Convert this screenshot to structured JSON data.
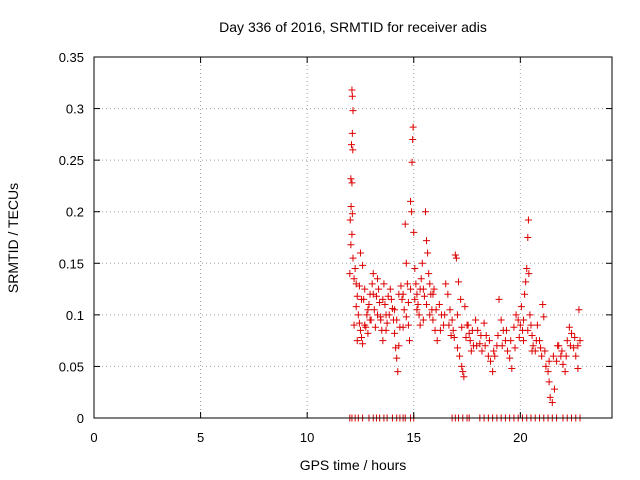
{
  "chart_data": {
    "type": "scatter",
    "title": "Day 336 of 2016, SRMTID for receiver adis",
    "xlabel": "GPS time / hours",
    "ylabel": "SRMTID / TECUs",
    "xlim": [
      0,
      24.3
    ],
    "ylim": [
      0,
      0.35
    ],
    "xticks": [
      0,
      5,
      10,
      15,
      20
    ],
    "xtick_labels": [
      "0",
      "5",
      "10",
      "15",
      "20"
    ],
    "yticks": [
      0,
      0.05,
      0.1,
      0.15,
      0.2,
      0.25,
      0.3,
      0.35
    ],
    "ytick_labels": [
      "0",
      "0.05",
      "0.1",
      "0.15",
      "0.2",
      "0.25",
      "0.3",
      "0.35"
    ],
    "grid": true,
    "marker": "+",
    "colors": {
      "series": "#dd0000",
      "grid": "#a0a0a0",
      "axes": "#000000"
    },
    "series": [
      {
        "name": "SRMTID",
        "points": [
          [
            12.0,
            0.0
          ],
          [
            12.1,
            0.0
          ],
          [
            12.25,
            0.0
          ],
          [
            12.4,
            0.0
          ],
          [
            12.6,
            0.0
          ],
          [
            12.9,
            0.0
          ],
          [
            13.1,
            0.0
          ],
          [
            13.25,
            0.0
          ],
          [
            13.4,
            0.0
          ],
          [
            13.6,
            0.0
          ],
          [
            13.75,
            0.0
          ],
          [
            14.0,
            0.0
          ],
          [
            14.2,
            0.0
          ],
          [
            14.35,
            0.0
          ],
          [
            14.5,
            0.0
          ],
          [
            14.6,
            0.0
          ],
          [
            14.85,
            0.0
          ],
          [
            15.0,
            0.0
          ],
          [
            16.8,
            0.0
          ],
          [
            16.95,
            0.0
          ],
          [
            17.1,
            0.0
          ],
          [
            17.3,
            0.0
          ],
          [
            17.5,
            0.0
          ],
          [
            17.6,
            0.0
          ],
          [
            18.1,
            0.0
          ],
          [
            18.3,
            0.0
          ],
          [
            18.5,
            0.0
          ],
          [
            18.7,
            0.0
          ],
          [
            18.9,
            0.0
          ],
          [
            19.1,
            0.0
          ],
          [
            19.3,
            0.0
          ],
          [
            19.5,
            0.0
          ],
          [
            19.7,
            0.0
          ],
          [
            19.9,
            0.0
          ],
          [
            20.1,
            0.0
          ],
          [
            20.3,
            0.0
          ],
          [
            20.5,
            0.0
          ],
          [
            20.7,
            0.0
          ],
          [
            20.9,
            0.0
          ],
          [
            21.1,
            0.0
          ],
          [
            21.3,
            0.0
          ],
          [
            21.5,
            0.0
          ],
          [
            21.7,
            0.0
          ],
          [
            22.0,
            0.0
          ],
          [
            22.2,
            0.0
          ],
          [
            22.4,
            0.0
          ],
          [
            22.6,
            0.0
          ],
          [
            22.8,
            0.0
          ],
          [
            12.1,
            0.318
          ],
          [
            12.12,
            0.312
          ],
          [
            12.15,
            0.298
          ],
          [
            12.12,
            0.276
          ],
          [
            12.08,
            0.265
          ],
          [
            12.14,
            0.26
          ],
          [
            12.05,
            0.232
          ],
          [
            12.1,
            0.228
          ],
          [
            12.06,
            0.205
          ],
          [
            12.12,
            0.198
          ],
          [
            12.02,
            0.192
          ],
          [
            12.1,
            0.178
          ],
          [
            12.05,
            0.168
          ],
          [
            12.15,
            0.155
          ],
          [
            12.0,
            0.14
          ],
          [
            12.2,
            0.135
          ],
          [
            12.25,
            0.145
          ],
          [
            12.3,
            0.13
          ],
          [
            12.35,
            0.118
          ],
          [
            12.3,
            0.108
          ],
          [
            12.4,
            0.1
          ],
          [
            12.45,
            0.092
          ],
          [
            12.5,
            0.085
          ],
          [
            12.55,
            0.078
          ],
          [
            12.6,
            0.072
          ],
          [
            12.65,
            0.115
          ],
          [
            12.7,
            0.125
          ],
          [
            12.6,
            0.148
          ],
          [
            12.5,
            0.16
          ],
          [
            12.7,
            0.09
          ],
          [
            12.8,
            0.1
          ],
          [
            12.85,
            0.082
          ],
          [
            12.9,
            0.11
          ],
          [
            12.95,
            0.12
          ],
          [
            13.0,
            0.095
          ],
          [
            13.05,
            0.13
          ],
          [
            13.1,
            0.14
          ],
          [
            13.15,
            0.105
          ],
          [
            13.2,
            0.088
          ],
          [
            13.25,
            0.118
          ],
          [
            13.3,
            0.135
          ],
          [
            13.35,
            0.125
          ],
          [
            13.4,
            0.112
          ],
          [
            13.45,
            0.098
          ],
          [
            13.5,
            0.085
          ],
          [
            13.55,
            0.075
          ],
          [
            13.6,
            0.13
          ],
          [
            13.65,
            0.11
          ],
          [
            13.7,
            0.1
          ],
          [
            13.75,
            0.092
          ],
          [
            13.8,
            0.118
          ],
          [
            13.9,
            0.125
          ],
          [
            14.0,
            0.106
          ],
          [
            14.05,
            0.095
          ],
          [
            14.1,
            0.082
          ],
          [
            14.15,
            0.068
          ],
          [
            14.2,
            0.058
          ],
          [
            14.25,
            0.045
          ],
          [
            14.3,
            0.07
          ],
          [
            14.35,
            0.088
          ],
          [
            14.4,
            0.128
          ],
          [
            14.45,
            0.115
          ],
          [
            14.5,
            0.12
          ],
          [
            14.55,
            0.105
          ],
          [
            14.6,
            0.188
          ],
          [
            14.65,
            0.15
          ],
          [
            14.7,
            0.13
          ],
          [
            14.75,
            0.09
          ],
          [
            14.8,
            0.075
          ],
          [
            14.85,
            0.21
          ],
          [
            14.9,
            0.2
          ],
          [
            14.92,
            0.248
          ],
          [
            14.95,
            0.27
          ],
          [
            14.97,
            0.282
          ],
          [
            15.0,
            0.18
          ],
          [
            15.05,
            0.145
          ],
          [
            15.1,
            0.13
          ],
          [
            15.15,
            0.12
          ],
          [
            15.2,
            0.11
          ],
          [
            15.25,
            0.1
          ],
          [
            15.3,
            0.09
          ],
          [
            15.35,
            0.135
          ],
          [
            15.4,
            0.15
          ],
          [
            15.45,
            0.125
          ],
          [
            15.5,
            0.118
          ],
          [
            15.55,
            0.2
          ],
          [
            15.6,
            0.172
          ],
          [
            15.65,
            0.16
          ],
          [
            15.7,
            0.14
          ],
          [
            15.75,
            0.13
          ],
          [
            15.8,
            0.12
          ],
          [
            15.85,
            0.105
          ],
          [
            15.9,
            0.095
          ],
          [
            15.95,
            0.125
          ],
          [
            16.0,
            0.085
          ],
          [
            16.1,
            0.075
          ],
          [
            16.2,
            0.11
          ],
          [
            16.3,
            0.1
          ],
          [
            16.4,
            0.09
          ],
          [
            16.5,
            0.13
          ],
          [
            16.6,
            0.12
          ],
          [
            16.7,
            0.105
          ],
          [
            16.8,
            0.095
          ],
          [
            16.85,
            0.085
          ],
          [
            16.9,
            0.078
          ],
          [
            16.95,
            0.158
          ],
          [
            17.0,
            0.155
          ],
          [
            17.05,
            0.068
          ],
          [
            17.1,
            0.132
          ],
          [
            17.15,
            0.06
          ],
          [
            17.2,
            0.115
          ],
          [
            17.25,
            0.05
          ],
          [
            17.3,
            0.045
          ],
          [
            17.35,
            0.04
          ],
          [
            17.4,
            0.108
          ],
          [
            17.5,
            0.09
          ],
          [
            17.6,
            0.082
          ],
          [
            17.65,
            0.075
          ],
          [
            17.7,
            0.065
          ],
          [
            17.8,
            0.07
          ],
          [
            17.9,
            0.095
          ],
          [
            18.0,
            0.085
          ],
          [
            18.1,
            0.072
          ],
          [
            18.2,
            0.065
          ],
          [
            18.3,
            0.092
          ],
          [
            18.4,
            0.08
          ],
          [
            18.5,
            0.06
          ],
          [
            18.6,
            0.055
          ],
          [
            18.7,
            0.045
          ],
          [
            18.8,
            0.06
          ],
          [
            18.9,
            0.07
          ],
          [
            19.0,
            0.115
          ],
          [
            19.1,
            0.095
          ],
          [
            19.2,
            0.085
          ],
          [
            19.3,
            0.075
          ],
          [
            19.4,
            0.065
          ],
          [
            19.5,
            0.058
          ],
          [
            19.6,
            0.048
          ],
          [
            19.7,
            0.088
          ],
          [
            19.8,
            0.1
          ],
          [
            19.9,
            0.095
          ],
          [
            20.0,
            0.09
          ],
          [
            20.05,
            0.108
          ],
          [
            20.1,
            0.085
          ],
          [
            20.15,
            0.075
          ],
          [
            20.2,
            0.12
          ],
          [
            20.25,
            0.132
          ],
          [
            20.3,
            0.145
          ],
          [
            20.35,
            0.175
          ],
          [
            20.38,
            0.192
          ],
          [
            20.4,
            0.14
          ],
          [
            20.45,
            0.1
          ],
          [
            20.5,
            0.09
          ],
          [
            20.55,
            0.08
          ],
          [
            20.6,
            0.07
          ],
          [
            20.7,
            0.065
          ],
          [
            20.8,
            0.09
          ],
          [
            20.9,
            0.075
          ],
          [
            21.0,
            0.06
          ],
          [
            21.05,
            0.11
          ],
          [
            21.1,
            0.098
          ],
          [
            21.2,
            0.05
          ],
          [
            21.3,
            0.045
          ],
          [
            21.35,
            0.035
          ],
          [
            21.4,
            0.02
          ],
          [
            21.5,
            0.015
          ],
          [
            21.6,
            0.028
          ],
          [
            21.7,
            0.055
          ],
          [
            21.8,
            0.07
          ],
          [
            21.9,
            0.06
          ],
          [
            22.0,
            0.052
          ],
          [
            22.1,
            0.045
          ],
          [
            22.2,
            0.075
          ],
          [
            22.3,
            0.088
          ],
          [
            22.4,
            0.082
          ],
          [
            22.5,
            0.068
          ],
          [
            22.6,
            0.06
          ],
          [
            22.7,
            0.048
          ],
          [
            22.75,
            0.105
          ],
          [
            22.8,
            0.075
          ],
          [
            12.2,
            0.09
          ],
          [
            12.35,
            0.075
          ],
          [
            12.45,
            0.128
          ],
          [
            12.55,
            0.115
          ],
          [
            12.75,
            0.088
          ],
          [
            12.85,
            0.105
          ],
          [
            12.95,
            0.095
          ],
          [
            13.1,
            0.12
          ],
          [
            13.3,
            0.1
          ],
          [
            13.45,
            0.095
          ],
          [
            13.55,
            0.115
          ],
          [
            13.7,
            0.085
          ],
          [
            13.85,
            0.1
          ],
          [
            13.95,
            0.115
          ],
          [
            14.1,
            0.105
          ],
          [
            14.2,
            0.095
          ],
          [
            14.3,
            0.12
          ],
          [
            14.5,
            0.088
          ],
          [
            14.65,
            0.098
          ],
          [
            14.75,
            0.112
          ],
          [
            14.85,
            0.125
          ],
          [
            15.05,
            0.115
          ],
          [
            15.15,
            0.105
          ],
          [
            15.3,
            0.125
          ],
          [
            15.45,
            0.095
          ],
          [
            15.6,
            0.11
          ],
          [
            15.75,
            0.1
          ],
          [
            15.9,
            0.12
          ],
          [
            16.05,
            0.105
          ],
          [
            16.25,
            0.085
          ],
          [
            16.45,
            0.1
          ],
          [
            16.65,
            0.09
          ],
          [
            16.75,
            0.08
          ],
          [
            17.05,
            0.1
          ],
          [
            17.25,
            0.088
          ],
          [
            17.45,
            0.078
          ],
          [
            17.55,
            0.09
          ],
          [
            17.75,
            0.085
          ],
          [
            17.95,
            0.07
          ],
          [
            18.15,
            0.08
          ],
          [
            18.35,
            0.07
          ],
          [
            18.55,
            0.075
          ],
          [
            18.75,
            0.065
          ],
          [
            18.95,
            0.08
          ],
          [
            19.15,
            0.07
          ],
          [
            19.35,
            0.085
          ],
          [
            19.55,
            0.075
          ],
          [
            19.75,
            0.068
          ],
          [
            19.95,
            0.078
          ],
          [
            20.15,
            0.095
          ],
          [
            20.35,
            0.085
          ],
          [
            20.55,
            0.065
          ],
          [
            20.75,
            0.075
          ],
          [
            20.95,
            0.068
          ],
          [
            21.15,
            0.065
          ],
          [
            21.35,
            0.055
          ],
          [
            21.55,
            0.06
          ],
          [
            21.75,
            0.07
          ],
          [
            21.95,
            0.065
          ],
          [
            22.15,
            0.06
          ],
          [
            22.35,
            0.07
          ],
          [
            22.55,
            0.078
          ],
          [
            22.7,
            0.07
          ]
        ]
      }
    ]
  }
}
